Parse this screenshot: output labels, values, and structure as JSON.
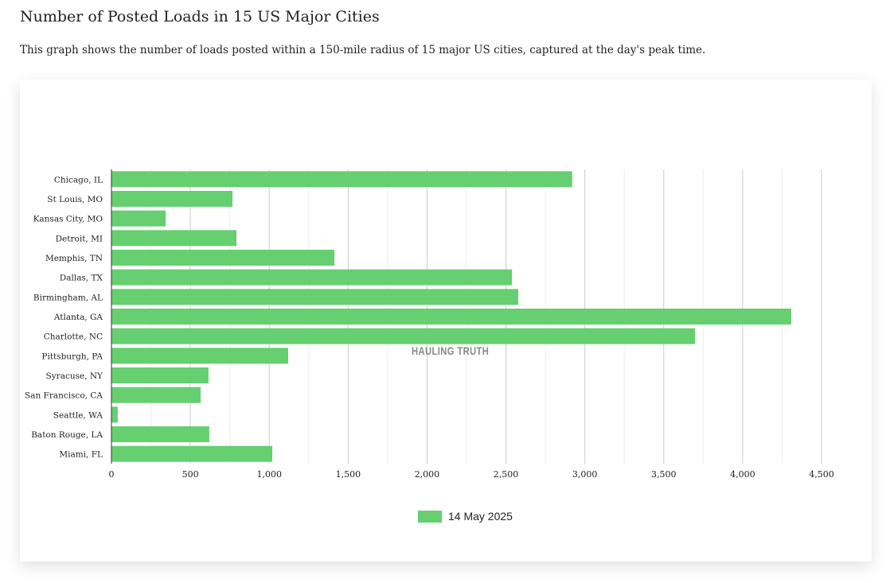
{
  "title": "Number of Posted Loads in 15 US Major Cities",
  "subtitle": "This graph shows the number of loads posted within a 150-mile radius of 15 major US cities, captured at the day's peak time.",
  "watermark": "HAULING TRUTH",
  "chart_data": {
    "type": "bar",
    "orientation": "horizontal",
    "categories": [
      "Chicago, IL",
      "St Louis, MO",
      "Kansas City, MO",
      "Detroit, MI",
      "Memphis, TN",
      "Dallas, TX",
      "Birmingham, AL",
      "Atlanta, GA",
      "Charlotte, NC",
      "Pittsburgh, PA",
      "Syracuse, NY",
      "San Francisco, CA",
      "Seattle, WA",
      "Baton Rouge, LA",
      "Miami, FL"
    ],
    "series": [
      {
        "name": "14 May 2025",
        "color": "#66cf70",
        "values": [
          2920,
          767,
          343,
          792,
          1413,
          2538,
          2578,
          4308,
          3698,
          1120,
          615,
          565,
          40,
          620,
          1019
        ]
      }
    ],
    "xlim": [
      0,
      4500
    ],
    "xticks": [
      0,
      500,
      1000,
      1500,
      2000,
      2500,
      3000,
      3500,
      4000,
      4500
    ],
    "xtick_labels": [
      "0",
      "500",
      "1,000",
      "1,500",
      "2,000",
      "2,500",
      "3,000",
      "3,500",
      "4,000",
      "4,500"
    ],
    "grid": true,
    "legend": "bottom"
  }
}
